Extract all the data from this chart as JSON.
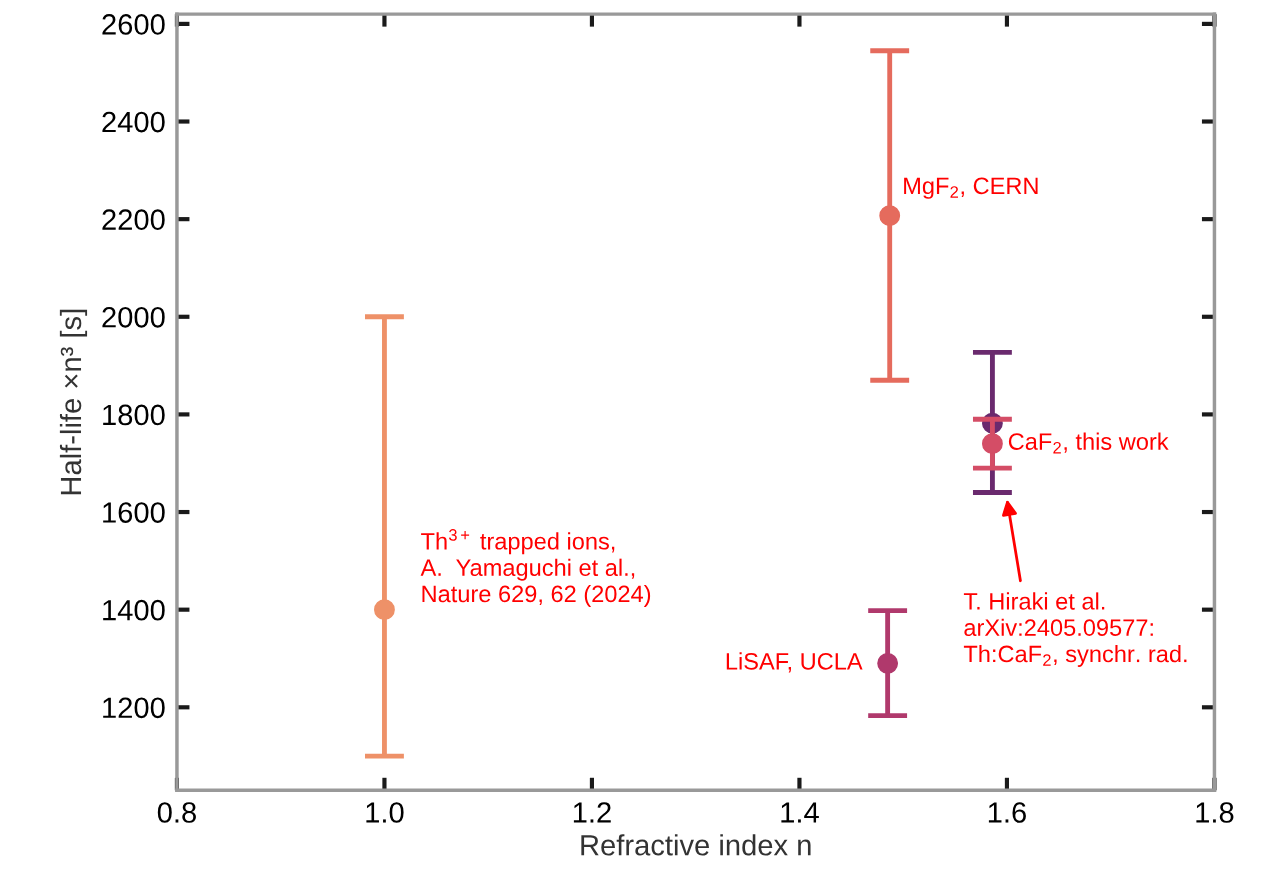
{
  "chart_data": {
    "type": "scatter",
    "xlabel": "Refractive index n",
    "ylabel": "Half-life ×n³ [s]",
    "xlim": [
      0.8,
      1.8
    ],
    "xticks": [
      {
        "value": 0.8,
        "label": "0.8"
      },
      {
        "value": 1.0,
        "label": "1.0"
      },
      {
        "value": 1.2,
        "label": "1.2"
      },
      {
        "value": 1.4,
        "label": "1.4"
      },
      {
        "value": 1.6,
        "label": "1.6"
      },
      {
        "value": 1.8,
        "label": "1.8"
      }
    ],
    "ylim": [
      1030,
      2620
    ],
    "yticks": [
      1200,
      1400,
      1600,
      1800,
      2000,
      2200,
      2400,
      2600
    ],
    "marker": "circle",
    "series": [
      {
        "color": "#ee9168",
        "x": [
          1.0
        ],
        "values": [
          1400
        ],
        "errors": [
          [
            1100,
            2000
          ]
        ]
      },
      {
        "color": "#e56b5d",
        "x": [
          1.487
        ],
        "values": [
          2207
        ],
        "errors": [
          [
            1870,
            2545
          ]
        ]
      },
      {
        "color": "#b0396c",
        "x": [
          1.485
        ],
        "values": [
          1290
        ],
        "errors": [
          [
            1183,
            1398
          ]
        ]
      },
      {
        "color": "#6a2a6e",
        "x": [
          1.586
        ],
        "values": [
          1782
        ],
        "errors": [
          [
            1640,
            1927
          ]
        ]
      },
      {
        "color": "#d44d66",
        "x": [
          1.586
        ],
        "values": [
          1740
        ],
        "errors": [
          [
            1690,
            1790
          ]
        ]
      }
    ],
    "annotations": [
      {
        "text": "Th$^{3+}$ trapped ions,\nA.  Yamaguchi et al.,\nNature 629, 62 (2024)",
        "x": 1.0,
        "y": 1400
      },
      {
        "text": "MgF$_{2}$, CERN",
        "x": 1.487,
        "y": 2207
      },
      {
        "text": "LiSAF, UCLA",
        "x": 1.485,
        "y": 1290
      },
      {
        "text": "CaF$_{2}$, this work",
        "x": 1.586,
        "y": 1740
      },
      "T. Hiraki et al.\narXiv:2405.09577:\nTh:CaF$_{2}$, synchr. rad."
    ]
  }
}
